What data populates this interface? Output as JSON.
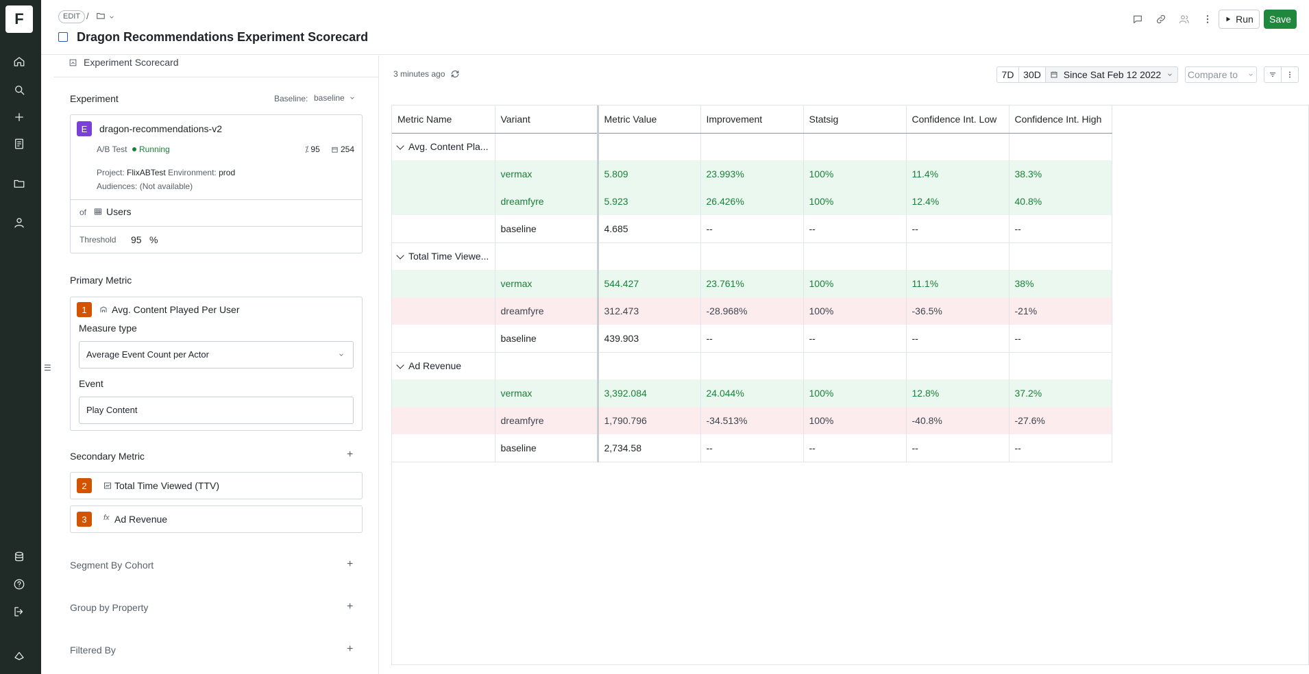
{
  "nav": {
    "logo": "F",
    "icons": [
      "home-icon",
      "search-icon",
      "plus-icon",
      "notebook-icon",
      "folder-icon",
      "user-icon",
      "database-icon",
      "help-icon",
      "logout-icon",
      "brand-icon"
    ]
  },
  "header": {
    "edit_label": "EDIT",
    "slash": "/",
    "title": "Dragon Recommendations Experiment Scorecard",
    "run_label": "Run",
    "save_label": "Save"
  },
  "left": {
    "subtitle": "Experiment Scorecard",
    "experiment": {
      "heading": "Experiment",
      "baseline_label": "Baseline:",
      "baseline_value": "baseline",
      "badge": "E",
      "name": "dragon-recommendations-v2",
      "type": "A/B Test",
      "status": "Running",
      "pct": "95",
      "count": "254",
      "project_label": "Project:",
      "project_value": "FlixABTest",
      "env_label": "Environment:",
      "env_value": "prod",
      "aud_label": "Audiences:",
      "aud_value": "(Not available)",
      "of_label": "of",
      "of_value": "Users",
      "threshold_label": "Threshold",
      "threshold_value": "95",
      "threshold_unit": "%"
    },
    "primary": {
      "heading": "Primary Metric",
      "badge": "1",
      "name": "Avg. Content Played Per User",
      "measure_label": "Measure type",
      "measure_value": "Average Event Count per Actor",
      "event_label": "Event",
      "event_value": "Play Content"
    },
    "secondary": {
      "heading": "Secondary Metric",
      "items": [
        {
          "badge": "2",
          "name": "Total Time Viewed (TTV)"
        },
        {
          "badge": "3",
          "name": "Ad Revenue"
        }
      ]
    },
    "segment_heading": "Segment By Cohort",
    "group_heading": "Group by Property",
    "filter_heading": "Filtered By"
  },
  "right": {
    "updated": "3 minutes ago",
    "range_7d": "7D",
    "range_30d": "30D",
    "since": "Since Sat Feb 12 2022",
    "compare": "Compare to",
    "columns": [
      "Metric Name",
      "Variant",
      "Metric Value",
      "Improvement",
      "Statsig",
      "Confidence Int. Low",
      "Confidence Int. High"
    ],
    "groups": [
      {
        "name": "Avg. Content Pla...",
        "rows": [
          {
            "variant": "vermax",
            "value": "5.809",
            "imp": "23.993%",
            "sig": "100%",
            "low": "11.4%",
            "high": "38.3%"
          },
          {
            "variant": "dreamfyre",
            "value": "5.923",
            "imp": "26.426%",
            "sig": "100%",
            "low": "12.4%",
            "high": "40.8%"
          },
          {
            "variant": "baseline",
            "value": "4.685",
            "imp": "--",
            "sig": "--",
            "low": "--",
            "high": "--"
          }
        ]
      },
      {
        "name": "Total Time Viewe...",
        "rows": [
          {
            "variant": "vermax",
            "value": "544.427",
            "imp": "23.761%",
            "sig": "100%",
            "low": "11.1%",
            "high": "38%"
          },
          {
            "variant": "dreamfyre",
            "value": "312.473",
            "imp": "-28.968%",
            "sig": "100%",
            "low": "-36.5%",
            "high": "-21%"
          },
          {
            "variant": "baseline",
            "value": "439.903",
            "imp": "--",
            "sig": "--",
            "low": "--",
            "high": "--"
          }
        ]
      },
      {
        "name": "Ad Revenue",
        "rows": [
          {
            "variant": "vermax",
            "value": "3,392.084",
            "imp": "24.044%",
            "sig": "100%",
            "low": "12.8%",
            "high": "37.2%"
          },
          {
            "variant": "dreamfyre",
            "value": "1,790.796",
            "imp": "-34.513%",
            "sig": "100%",
            "low": "-40.8%",
            "high": "-27.6%"
          },
          {
            "variant": "baseline",
            "value": "2,734.58",
            "imp": "--",
            "sig": "--",
            "low": "--",
            "high": "--"
          }
        ]
      }
    ]
  },
  "colors": {
    "positive_bg": "#eaf8ef",
    "negative_bg": "#fdecee",
    "positive_text": "#1a7f37",
    "save": "#1f883d"
  }
}
